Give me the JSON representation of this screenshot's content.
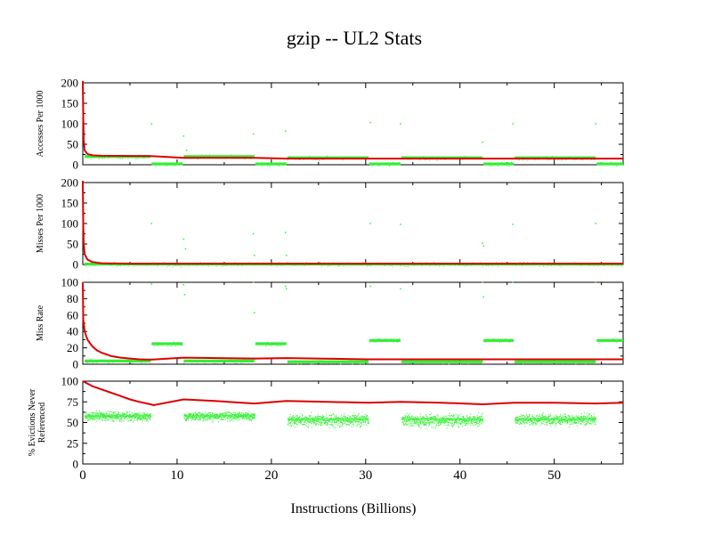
{
  "chart_data": {
    "title": "gzip -- UL2  Stats",
    "xlabel": "Instructions (Billions)",
    "x_ticks": [
      "0",
      "10",
      "20",
      "30",
      "40",
      "50"
    ],
    "x_tick_values": [
      0,
      10,
      20,
      30,
      40,
      50
    ],
    "xlim": [
      0,
      57.3
    ],
    "colors": {
      "raw": "#33ee33",
      "cumulative": "#dd0000"
    },
    "panels": [
      {
        "type": "scatter",
        "ylabel": "Accesses Per 1000",
        "ylim": [
          0,
          200
        ],
        "y_ticks": [
          "0",
          "50",
          "100",
          "150",
          "200"
        ],
        "y_tick_values": [
          0,
          50,
          100,
          150,
          200
        ],
        "raw_segments": [
          {
            "x0": 0.2,
            "x1": 7.2,
            "y": 20
          },
          {
            "x0": 7.3,
            "x1": 10.6,
            "y": 2
          },
          {
            "x0": 10.7,
            "x1": 18.2,
            "y": 20
          },
          {
            "x0": 18.3,
            "x1": 21.6,
            "y": 2
          },
          {
            "x0": 21.7,
            "x1": 30.3,
            "y": 17
          },
          {
            "x0": 30.4,
            "x1": 33.7,
            "y": 2
          },
          {
            "x0": 33.8,
            "x1": 42.4,
            "y": 17
          },
          {
            "x0": 42.5,
            "x1": 45.7,
            "y": 2
          },
          {
            "x0": 45.8,
            "x1": 54.4,
            "y": 17
          },
          {
            "x0": 54.5,
            "x1": 57.3,
            "y": 2
          }
        ],
        "raw_outliers": [
          [
            0.05,
            200
          ],
          [
            0.1,
            130
          ],
          [
            7.3,
            100
          ],
          [
            10.7,
            70
          ],
          [
            11,
            35
          ],
          [
            18.1,
            75
          ],
          [
            21.5,
            82
          ],
          [
            30.5,
            103
          ],
          [
            33.7,
            100
          ],
          [
            42.4,
            55
          ],
          [
            45.6,
            100
          ],
          [
            54.4,
            100
          ]
        ],
        "cumulative": [
          [
            0,
            205
          ],
          [
            0.05,
            120
          ],
          [
            0.1,
            60
          ],
          [
            0.2,
            35
          ],
          [
            0.5,
            26
          ],
          [
            1,
            23
          ],
          [
            2,
            22
          ],
          [
            7.2,
            21
          ],
          [
            10.7,
            17
          ],
          [
            18.3,
            17
          ],
          [
            21.6,
            15
          ],
          [
            57.3,
            15
          ]
        ]
      },
      {
        "type": "scatter",
        "ylabel": "Misses Per 1000",
        "ylim": [
          0,
          200
        ],
        "y_ticks": [
          "0",
          "50",
          "100",
          "150",
          "200"
        ],
        "y_tick_values": [
          0,
          50,
          100,
          150,
          200
        ],
        "raw_segments": [
          {
            "x0": 0.2,
            "x1": 57.3,
            "y": 1
          }
        ],
        "raw_outliers": [
          [
            0.05,
            200
          ],
          [
            0.1,
            120
          ],
          [
            7.3,
            100
          ],
          [
            10.7,
            62
          ],
          [
            10.9,
            38
          ],
          [
            18.1,
            75
          ],
          [
            18.2,
            22
          ],
          [
            21.5,
            78
          ],
          [
            21.6,
            22
          ],
          [
            30.5,
            100
          ],
          [
            33.7,
            98
          ],
          [
            42.4,
            52
          ],
          [
            42.5,
            45
          ],
          [
            45.6,
            98
          ],
          [
            54.4,
            100
          ]
        ],
        "cumulative": [
          [
            0,
            205
          ],
          [
            0.05,
            100
          ],
          [
            0.1,
            50
          ],
          [
            0.2,
            25
          ],
          [
            0.5,
            12
          ],
          [
            1,
            6
          ],
          [
            2,
            3
          ],
          [
            5,
            2
          ],
          [
            57.3,
            2
          ]
        ]
      },
      {
        "type": "scatter",
        "ylabel": "Miss Rate",
        "ylim": [
          0,
          100
        ],
        "y_ticks": [
          "0",
          "20",
          "40",
          "60",
          "80",
          "100"
        ],
        "y_tick_values": [
          0,
          20,
          40,
          60,
          80,
          100
        ],
        "raw_segments": [
          {
            "x0": 0.2,
            "x1": 7.2,
            "y": 4
          },
          {
            "x0": 7.3,
            "x1": 10.6,
            "y": 25
          },
          {
            "x0": 10.7,
            "x1": 18.2,
            "y": 4
          },
          {
            "x0": 18.3,
            "x1": 21.6,
            "y": 25
          },
          {
            "x0": 21.7,
            "x1": 30.3,
            "y": 3
          },
          {
            "x0": 30.4,
            "x1": 33.7,
            "y": 29
          },
          {
            "x0": 33.8,
            "x1": 42.4,
            "y": 3
          },
          {
            "x0": 42.5,
            "x1": 45.7,
            "y": 29
          },
          {
            "x0": 45.8,
            "x1": 54.4,
            "y": 3
          },
          {
            "x0": 54.5,
            "x1": 57.3,
            "y": 29
          }
        ],
        "raw_outliers": [
          [
            0.05,
            100
          ],
          [
            0.1,
            70
          ],
          [
            7.3,
            98
          ],
          [
            10.7,
            97
          ],
          [
            10.8,
            85
          ],
          [
            18.1,
            100
          ],
          [
            18.2,
            63
          ],
          [
            21.5,
            95
          ],
          [
            21.6,
            92
          ],
          [
            30.5,
            95
          ],
          [
            33.7,
            92
          ],
          [
            42.4,
            100
          ],
          [
            42.5,
            82
          ],
          [
            45.6,
            100
          ],
          [
            54.4,
            100
          ]
        ],
        "cumulative": [
          [
            0,
            100
          ],
          [
            0.05,
            55
          ],
          [
            0.2,
            40
          ],
          [
            0.5,
            30
          ],
          [
            1,
            22
          ],
          [
            1.5,
            17
          ],
          [
            2,
            14
          ],
          [
            3,
            10
          ],
          [
            4,
            8
          ],
          [
            5,
            7
          ],
          [
            6,
            6
          ],
          [
            7.2,
            5.5
          ],
          [
            10.7,
            8
          ],
          [
            18.3,
            7
          ],
          [
            21.6,
            7.5
          ],
          [
            30.3,
            6
          ],
          [
            57.3,
            6
          ]
        ]
      },
      {
        "type": "scatter",
        "ylabel": "% Evictions Never Referenced",
        "ylim": [
          0,
          100
        ],
        "y_ticks": [
          "0",
          "25",
          "50",
          "75",
          "100"
        ],
        "y_tick_values": [
          0,
          25,
          50,
          75,
          100
        ],
        "raw_bands": [
          {
            "x0": 0.2,
            "x1": 7.2,
            "y_lo": 50,
            "y_hi": 66,
            "y_mid": 58
          },
          {
            "x0": 10.7,
            "x1": 18.2,
            "y_lo": 50,
            "y_hi": 66,
            "y_mid": 58
          },
          {
            "x0": 21.7,
            "x1": 30.3,
            "y_lo": 42,
            "y_hi": 64,
            "y_mid": 54
          },
          {
            "x0": 33.8,
            "x1": 42.4,
            "y_lo": 42,
            "y_hi": 64,
            "y_mid": 54
          },
          {
            "x0": 45.8,
            "x1": 54.4,
            "y_lo": 44,
            "y_hi": 64,
            "y_mid": 54
          }
        ],
        "cumulative": [
          [
            0,
            100
          ],
          [
            0.5,
            97
          ],
          [
            1,
            94
          ],
          [
            2,
            90
          ],
          [
            3,
            86
          ],
          [
            4,
            82
          ],
          [
            5,
            78
          ],
          [
            6,
            75
          ],
          [
            7.2,
            72
          ],
          [
            7.5,
            71
          ],
          [
            10.7,
            78
          ],
          [
            14,
            76
          ],
          [
            18.2,
            73
          ],
          [
            21.6,
            76
          ],
          [
            26,
            75
          ],
          [
            30.3,
            74
          ],
          [
            33.7,
            75
          ],
          [
            38,
            74
          ],
          [
            42.4,
            72
          ],
          [
            45.7,
            74
          ],
          [
            50,
            74
          ],
          [
            54.4,
            73
          ],
          [
            57.3,
            74
          ]
        ]
      }
    ]
  }
}
